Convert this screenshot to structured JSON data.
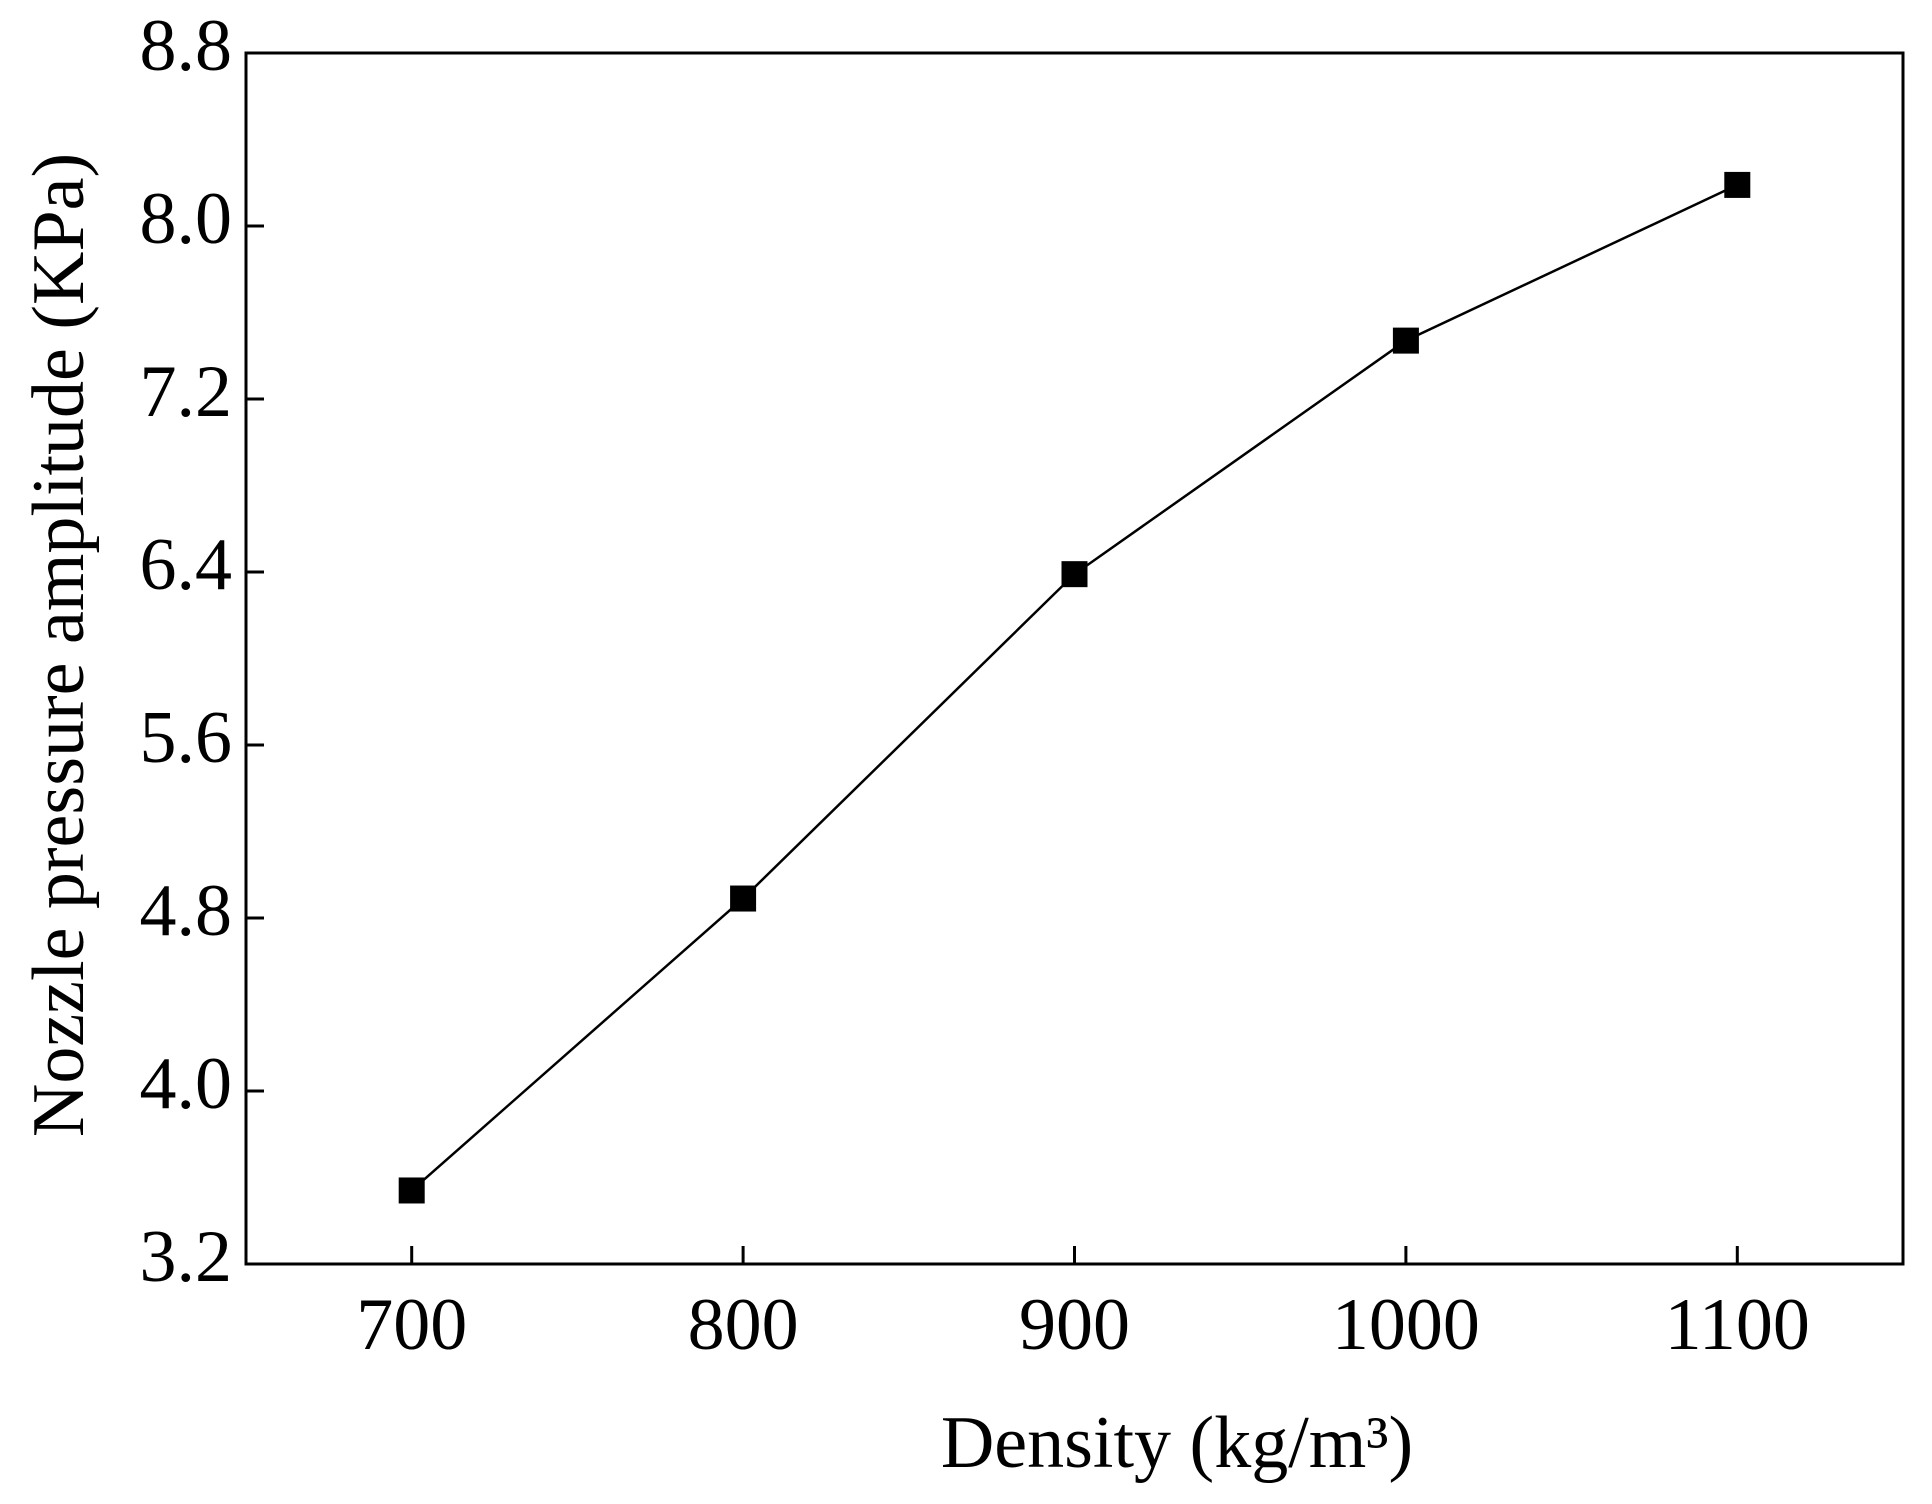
{
  "chart_data": {
    "type": "line",
    "x_label": "Density (kg/m³)",
    "y_label": "Nozzle pressure amplitude (KPa)",
    "x": [
      700,
      800,
      900,
      1000,
      1100
    ],
    "series": [
      {
        "color": "#000000",
        "marker": "square",
        "values": [
          3.54,
          4.89,
          6.39,
          7.47,
          8.19
        ]
      }
    ],
    "xlim": [
      650,
      1150
    ],
    "ylim": [
      3.2,
      8.8
    ],
    "xticks": [
      700,
      800,
      900,
      1000,
      1100
    ],
    "yticks": [
      3.2,
      {
        "value": 4,
        "label": "4.0"
      },
      4.8,
      5.6,
      6.4,
      7.2,
      {
        "value": 8,
        "label": "8.0"
      },
      8.8
    ],
    "grid": false
  }
}
